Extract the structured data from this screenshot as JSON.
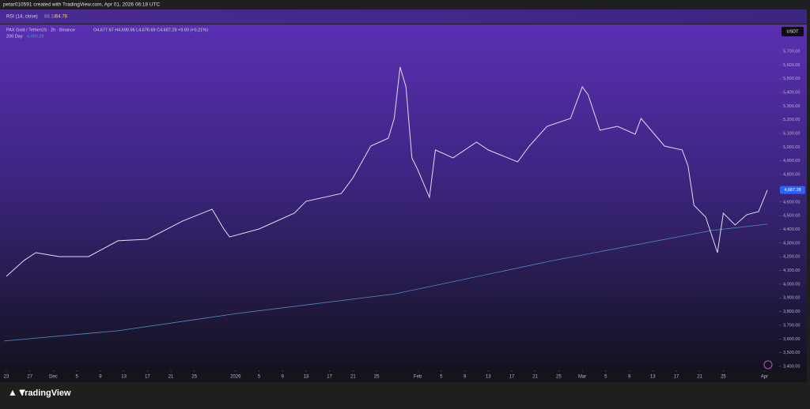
{
  "header": {
    "text": "petar010591 created with TradingView.com, Apr 01, 2026 06:18 UTC"
  },
  "rsi": {
    "title": "RSI (14, close)",
    "value_a": "68.18",
    "value_b": "64.78"
  },
  "footer": {
    "brand": "TradingView"
  },
  "chart_data": {
    "type": "line",
    "currency": "USDT",
    "legend_values": [
      "O4,677.67 H4,690.56 L4,676.69 C4,687.28 +9.60 (+0.21%)",
      "4,490.28"
    ],
    "last_price": {
      "value": 4687.28,
      "label": "4,687.28"
    },
    "xlim": [
      -1.08,
      131.5
    ],
    "ylim": [
      3377,
      5890
    ],
    "grid": false,
    "xticks": [
      {
        "value": 0,
        "label": "23"
      },
      {
        "value": 4,
        "label": "27"
      },
      {
        "value": 8,
        "label": "Dec"
      },
      {
        "value": 12,
        "label": "5"
      },
      {
        "value": 16,
        "label": "9"
      },
      {
        "value": 20,
        "label": "13"
      },
      {
        "value": 24,
        "label": "17"
      },
      {
        "value": 28,
        "label": "21"
      },
      {
        "value": 32,
        "label": "25"
      },
      {
        "value": 39,
        "label": "2026"
      },
      {
        "value": 43,
        "label": "5"
      },
      {
        "value": 47,
        "label": "9"
      },
      {
        "value": 51,
        "label": "13"
      },
      {
        "value": 55,
        "label": "17"
      },
      {
        "value": 59,
        "label": "21"
      },
      {
        "value": 63,
        "label": "25"
      },
      {
        "value": 70,
        "label": "Feb"
      },
      {
        "value": 74,
        "label": "5"
      },
      {
        "value": 78,
        "label": "9"
      },
      {
        "value": 82,
        "label": "13"
      },
      {
        "value": 86,
        "label": "17"
      },
      {
        "value": 90,
        "label": "21"
      },
      {
        "value": 94,
        "label": "25"
      },
      {
        "value": 98,
        "label": "Mar"
      },
      {
        "value": 102,
        "label": "5"
      },
      {
        "value": 106,
        "label": "9"
      },
      {
        "value": 110,
        "label": "13"
      },
      {
        "value": 114,
        "label": "17"
      },
      {
        "value": 118,
        "label": "21"
      },
      {
        "value": 122,
        "label": "25"
      },
      {
        "value": 129,
        "label": "Apr"
      }
    ],
    "yticks": [
      {
        "value": 3400,
        "label": "3,400.00"
      },
      {
        "value": 3500,
        "label": "3,500.00"
      },
      {
        "value": 3600,
        "label": "3,600.00"
      },
      {
        "value": 3700,
        "label": "3,700.00"
      },
      {
        "value": 3800,
        "label": "3,800.00"
      },
      {
        "value": 3900,
        "label": "3,900.00"
      },
      {
        "value": 4000,
        "label": "4,000.00"
      },
      {
        "value": 4100,
        "label": "4,100.00"
      },
      {
        "value": 4200,
        "label": "4,200.00"
      },
      {
        "value": 4300,
        "label": "4,300.00"
      },
      {
        "value": 4400,
        "label": "4,400.00"
      },
      {
        "value": 4500,
        "label": "4,500.00"
      },
      {
        "value": 4600,
        "label": "4,600.00"
      },
      {
        "value": 4700,
        "label": "4,700.00"
      },
      {
        "value": 4800,
        "label": "4,800.00"
      },
      {
        "value": 4900,
        "label": "4,900.00"
      },
      {
        "value": 5000,
        "label": "5,000.00"
      },
      {
        "value": 5100,
        "label": "5,100.00"
      },
      {
        "value": 5200,
        "label": "5,200.00"
      },
      {
        "value": 5300,
        "label": "5,300.00"
      },
      {
        "value": 5400,
        "label": "5,400.00"
      },
      {
        "value": 5500,
        "label": "5,500.00"
      },
      {
        "value": 5600,
        "label": "5,600.00"
      },
      {
        "value": 5700,
        "label": "5,700.00"
      }
    ],
    "series": [
      {
        "name": "PAX Gold / TetherUS · 2h · Binance",
        "color": "#e4dcf2",
        "x": [
          0,
          3,
          5,
          9,
          14,
          19,
          24,
          30,
          35,
          37,
          38,
          43,
          49,
          51,
          57,
          59,
          62,
          65,
          66,
          67,
          68,
          69,
          70,
          72,
          73,
          76,
          80,
          82,
          87,
          89,
          92,
          96,
          98,
          99,
          101,
          104,
          107,
          108,
          112,
          115,
          116,
          117,
          119,
          121,
          122,
          124,
          126,
          128,
          129.5
        ],
        "values": [
          4057,
          4173,
          4230,
          4201,
          4201,
          4317,
          4328,
          4461,
          4547,
          4403,
          4345,
          4403,
          4518,
          4605,
          4662,
          4778,
          5008,
          5066,
          5210,
          5585,
          5441,
          4922,
          4835,
          4634,
          4980,
          4922,
          5037,
          4980,
          4893,
          5008,
          5152,
          5210,
          5441,
          5383,
          5124,
          5152,
          5095,
          5210,
          5008,
          4980,
          4864,
          4576,
          4490,
          4230,
          4518,
          4432,
          4507,
          4530,
          4687.28
        ]
      },
      {
        "name": "200 Day",
        "color": "#4f8fc4",
        "x": [
          -0.4,
          19,
          39.3,
          66.2,
          93.1,
          120,
          129.5
        ],
        "values": [
          3585,
          3660,
          3786,
          3930,
          4173,
          4392,
          4438
        ]
      }
    ]
  }
}
